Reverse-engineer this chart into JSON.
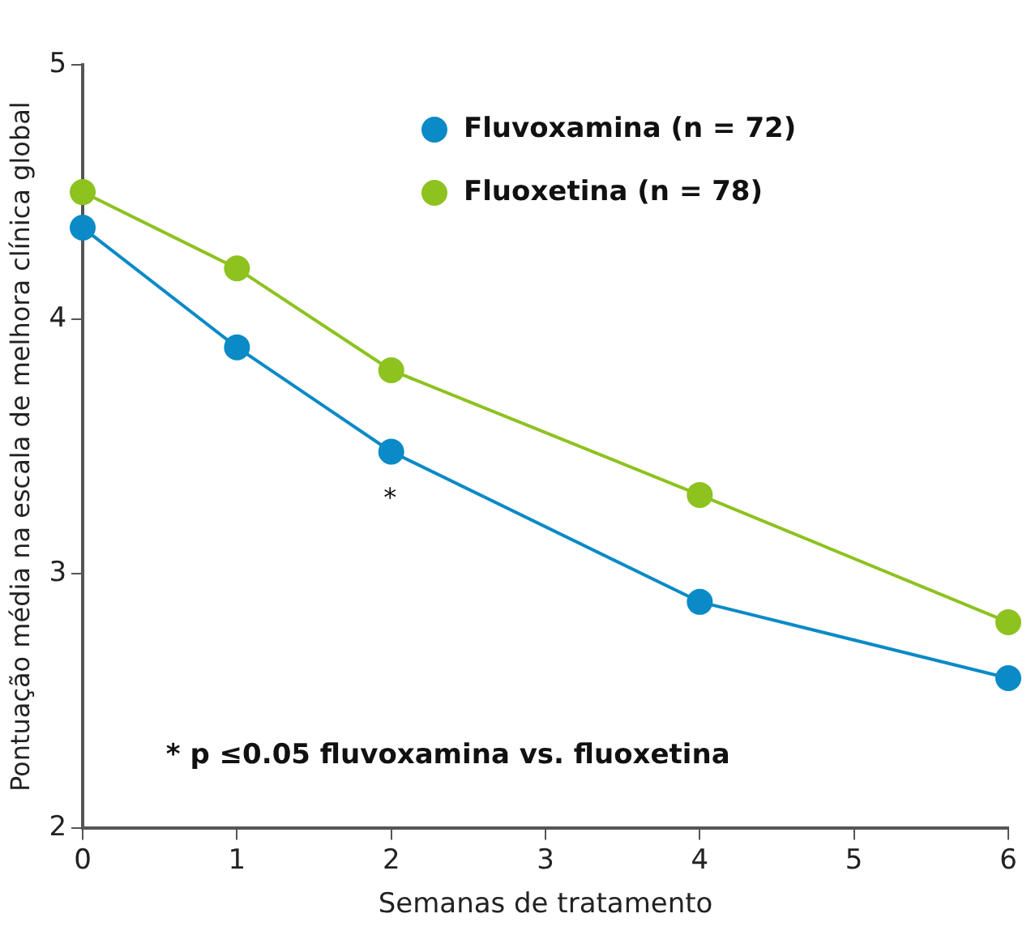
{
  "chart_data": {
    "type": "line",
    "xlabel": "Semanas de tratamento",
    "ylabel": "Pontuação média na escala de melhora clínica global",
    "x": [
      0,
      1,
      2,
      4,
      6
    ],
    "series": [
      {
        "name": "Fluvoxamina (n = 72)",
        "color": "#0a8ac6",
        "values": [
          4.36,
          3.89,
          3.48,
          2.89,
          2.59
        ]
      },
      {
        "name": "Fluoxetina (n = 78)",
        "color": "#8dc21f",
        "values": [
          4.5,
          4.2,
          3.8,
          3.31,
          2.81
        ]
      }
    ],
    "xlim": [
      0,
      6
    ],
    "xticks": [
      0,
      1,
      2,
      3,
      4,
      5,
      6
    ],
    "ylim": [
      2,
      5
    ],
    "yticks": [
      2,
      3,
      4,
      5
    ],
    "grid": false,
    "legend": "top right",
    "marker": "circle",
    "line_style": "solid",
    "annotations": [
      "*",
      "* p ≤0.05 fluvoxamina vs. fluoxetina"
    ]
  }
}
